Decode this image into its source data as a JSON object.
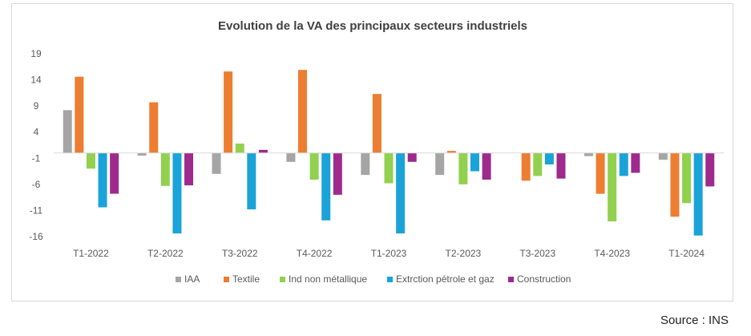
{
  "chart_data": {
    "type": "bar",
    "title": "Evolution de la VA des principaux secteurs industriels",
    "categories": [
      "T1-2022",
      "T2-2022",
      "T3-2022",
      "T4-2022",
      "T1-2023",
      "T2-2023",
      "T3-2023",
      "T4-2023",
      "T1-2024"
    ],
    "y_ticks": [
      "19",
      "14",
      "9",
      "4",
      "-1",
      "-6",
      "-11",
      "-16"
    ],
    "ylim": [
      -16,
      19
    ],
    "grid": false,
    "legend_position": "bottom",
    "series": [
      {
        "name": "IAA",
        "color": "#a5a5a5",
        "values": [
          8.2,
          -0.5,
          -4.0,
          -1.7,
          -4.2,
          -4.2,
          null,
          -0.6,
          -1.3
        ]
      },
      {
        "name": "Textile",
        "color": "#ed7d31",
        "values": [
          14.6,
          9.7,
          15.6,
          15.9,
          11.3,
          0.4,
          -5.3,
          -7.8,
          -12.2
        ]
      },
      {
        "name": "Ind non métallique",
        "color": "#92d050",
        "values": [
          -3.0,
          -6.3,
          1.8,
          -5.1,
          -5.8,
          -6.0,
          -4.4,
          -13.1,
          -9.6
        ]
      },
      {
        "name": "Extrction pétrole et gaz",
        "color": "#1aa3d9",
        "values": [
          -10.4,
          -15.4,
          -10.8,
          -12.9,
          -15.4,
          -3.5,
          -2.2,
          -4.4,
          -15.8
        ]
      },
      {
        "name": "Construction",
        "color": "#9e2a8e",
        "values": [
          -7.8,
          -6.2,
          0.6,
          -8.0,
          -1.7,
          -5.1,
          -4.9,
          -3.8,
          -6.4
        ]
      }
    ]
  },
  "source": "Source : INS"
}
